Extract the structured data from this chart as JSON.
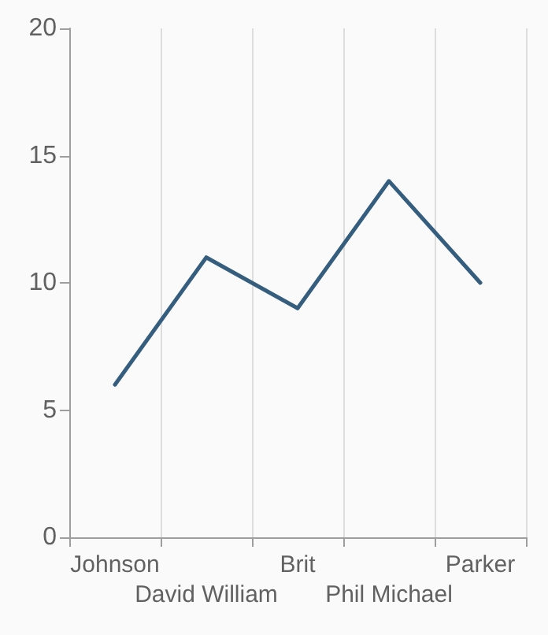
{
  "chart_data": {
    "type": "line",
    "categories": [
      "Johnson",
      "David William",
      "Brit",
      "Phil Michael",
      "Parker"
    ],
    "series": [
      {
        "color": "#355e7e",
        "values": [
          6,
          11,
          9,
          14,
          10
        ]
      }
    ],
    "ylim": [
      0,
      20
    ],
    "yticks": [
      0,
      5,
      10,
      15,
      20
    ],
    "grid": "x",
    "marker": "none"
  }
}
